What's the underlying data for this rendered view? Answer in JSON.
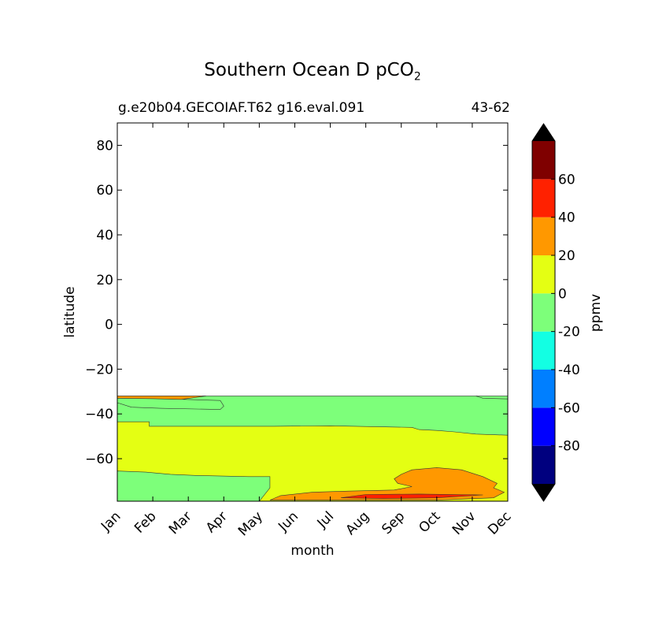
{
  "chart_data": {
    "type": "heatmap",
    "title": "Southern Ocean D pCO",
    "title_subscript": "2",
    "subtitle_left": "g.e20b04.GECOIAF.T62 g16.eval.091",
    "subtitle_right": "43-62",
    "xlabel": "month",
    "ylabel": "latitude",
    "x_ticks": [
      "Jan",
      "Feb",
      "Mar",
      "Apr",
      "May",
      "Jun",
      "Jul",
      "Aug",
      "Sep",
      "Oct",
      "Nov",
      "Dec"
    ],
    "ylim": [
      -79,
      90
    ],
    "y_ticks": [
      80,
      60,
      40,
      20,
      0,
      -20,
      -40,
      -60
    ],
    "y_tick_labels": [
      "80",
      "60",
      "40",
      "20",
      "0",
      "−20",
      "−40",
      "−60"
    ],
    "data_lat_range": [
      -79,
      -32
    ],
    "colorbar": {
      "label": "ppmv",
      "ticks": [
        "60",
        "40",
        "20",
        "0",
        "-20",
        "-40",
        "-60",
        "-80"
      ],
      "levels": [
        -100,
        -80,
        -60,
        -40,
        -20,
        0,
        20,
        40,
        60,
        80
      ],
      "colors": [
        "#00007f",
        "#0000ff",
        "#007fff",
        "#13ffe3",
        "#7dff7a",
        "#e4ff13",
        "#ff9800",
        "#ff2100",
        "#7f0000"
      ],
      "extend_low_color": "#000000",
      "extend_high_color": "#000000"
    },
    "contour_regions": [
      {
        "level_range": "0 to 20",
        "color": "#e4ff13",
        "points": [
          [
            0,
            -32
          ],
          [
            11,
            -32
          ],
          [
            11,
            -79
          ],
          [
            0,
            -79
          ]
        ]
      },
      {
        "level_range": "-20 to 0",
        "color": "#7dff7a",
        "points": [
          [
            0,
            -43.5
          ],
          [
            0.9,
            -43.5
          ],
          [
            0.9,
            -45.5
          ],
          [
            2.9,
            -45.5
          ],
          [
            4.4,
            -45.5
          ],
          [
            6,
            -45.3
          ],
          [
            8.3,
            -46
          ],
          [
            8.5,
            -47
          ],
          [
            9,
            -47.4
          ],
          [
            9.5,
            -48
          ],
          [
            10.1,
            -49
          ],
          [
            11,
            -49.5
          ],
          [
            11,
            -32
          ],
          [
            10.1,
            -32
          ],
          [
            10.3,
            -33
          ],
          [
            11,
            -33.3
          ],
          [
            11,
            -32
          ],
          [
            0,
            -32
          ],
          [
            0,
            -35
          ],
          [
            0.4,
            -37
          ],
          [
            1.2,
            -37.5
          ],
          [
            2.9,
            -38
          ],
          [
            3,
            -36.5
          ],
          [
            2.9,
            -34
          ],
          [
            0.8,
            -33
          ],
          [
            0,
            -33
          ]
        ]
      },
      {
        "level_range": "-20 to 0",
        "color": "#7dff7a",
        "points": [
          [
            0,
            -65.5
          ],
          [
            0.8,
            -66
          ],
          [
            1.5,
            -67
          ],
          [
            2.2,
            -67.5
          ],
          [
            3.7,
            -68
          ],
          [
            4.3,
            -68
          ],
          [
            4.3,
            -73
          ],
          [
            4.0,
            -79
          ],
          [
            0,
            -79
          ]
        ]
      },
      {
        "level_range": "20 to 40",
        "color": "#ff9800",
        "points": [
          [
            0,
            -32
          ],
          [
            2.5,
            -32
          ],
          [
            1.8,
            -33.5
          ],
          [
            1,
            -33.2
          ],
          [
            0,
            -33
          ]
        ]
      },
      {
        "level_range": "20 to 40",
        "color": "#ff9800",
        "points": [
          [
            4.3,
            -78.5
          ],
          [
            4.6,
            -76.5
          ],
          [
            5.5,
            -75
          ],
          [
            6.5,
            -74.5
          ],
          [
            7.8,
            -74
          ],
          [
            8.3,
            -72.5
          ],
          [
            7.9,
            -71
          ],
          [
            7.8,
            -69
          ],
          [
            8.0,
            -67
          ],
          [
            8.3,
            -65
          ],
          [
            9.0,
            -64
          ],
          [
            9.7,
            -65
          ],
          [
            10.3,
            -68
          ],
          [
            10.7,
            -71
          ],
          [
            10.6,
            -73
          ],
          [
            10.9,
            -75
          ],
          [
            10.6,
            -77.5
          ],
          [
            9.0,
            -78.5
          ]
        ]
      },
      {
        "level_range": "40 to 60",
        "color": "#ff2100",
        "points": [
          [
            6.3,
            -77.5
          ],
          [
            7.0,
            -76
          ],
          [
            8.5,
            -75.8
          ],
          [
            10.3,
            -76.2
          ],
          [
            9.0,
            -77.5
          ],
          [
            7.5,
            -77.8
          ]
        ]
      }
    ]
  }
}
